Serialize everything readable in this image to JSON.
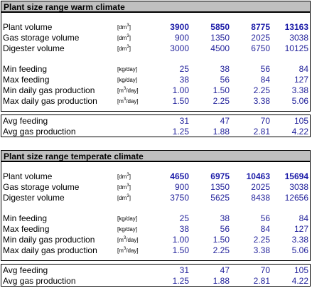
{
  "sections": [
    {
      "title": "Plant size range warm climate",
      "rows": [
        {
          "label": "Plant volume",
          "unit": "dm",
          "sup": "3",
          "values": [
            "3900",
            "5850",
            "8775",
            "13163"
          ]
        },
        {
          "label": "Gas storage volume",
          "unit": "dm",
          "sup": "3",
          "values": [
            "900",
            "1350",
            "2025",
            "3038"
          ]
        },
        {
          "label": "Digester volume",
          "unit": "dm",
          "sup": "3",
          "values": [
            "3000",
            "4500",
            "6750",
            "10125"
          ]
        },
        {
          "label": "Min feeding",
          "unit": "kg/day",
          "sup": "",
          "values": [
            "25",
            "38",
            "56",
            "84"
          ]
        },
        {
          "label": "Max feeding",
          "unit": "kg/day",
          "sup": "",
          "values": [
            "38",
            "56",
            "84",
            "127"
          ]
        },
        {
          "label": "Min daily gas production",
          "unit": "m",
          "sup": "3",
          "unit_tail": "/day",
          "values": [
            "1.00",
            "1.50",
            "2.25",
            "3.38"
          ]
        },
        {
          "label": "Max daily gas production",
          "unit": "m",
          "sup": "3",
          "unit_tail": "/day",
          "values": [
            "1.50",
            "2.25",
            "3.38",
            "5.06"
          ]
        },
        {
          "label": "Avg feeding",
          "unit": "",
          "sup": "",
          "values": [
            "31",
            "47",
            "70",
            "105"
          ]
        },
        {
          "label": "Avg gas production",
          "unit": "",
          "sup": "",
          "values": [
            "1.25",
            "1.88",
            "2.81",
            "4.22"
          ]
        }
      ]
    },
    {
      "title": "Plant size range temperate climate",
      "rows": [
        {
          "label": "Plant volume",
          "unit": "dm",
          "sup": "3",
          "values": [
            "4650",
            "6975",
            "10463",
            "15694"
          ]
        },
        {
          "label": "Gas storage volume",
          "unit": "dm",
          "sup": "3",
          "values": [
            "900",
            "1350",
            "2025",
            "3038"
          ]
        },
        {
          "label": "Digester volume",
          "unit": "dm",
          "sup": "3",
          "values": [
            "3750",
            "5625",
            "8438",
            "12656"
          ]
        },
        {
          "label": "Min feeding",
          "unit": "kg/day",
          "sup": "",
          "values": [
            "25",
            "38",
            "56",
            "84"
          ]
        },
        {
          "label": "Max feeding",
          "unit": "kg/day",
          "sup": "",
          "values": [
            "38",
            "56",
            "84",
            "127"
          ]
        },
        {
          "label": "Min daily gas production",
          "unit": "m",
          "sup": "3",
          "unit_tail": "/day",
          "values": [
            "1.00",
            "1.50",
            "2.25",
            "3.38"
          ]
        },
        {
          "label": "Max daily gas production",
          "unit": "m",
          "sup": "3",
          "unit_tail": "/day",
          "values": [
            "1.50",
            "2.25",
            "3.38",
            "5.06"
          ]
        },
        {
          "label": "Avg feeding",
          "unit": "",
          "sup": "",
          "values": [
            "31",
            "47",
            "70",
            "105"
          ]
        },
        {
          "label": "Avg gas production",
          "unit": "",
          "sup": "",
          "values": [
            "1.25",
            "1.88",
            "2.81",
            "4.22"
          ]
        }
      ]
    }
  ]
}
